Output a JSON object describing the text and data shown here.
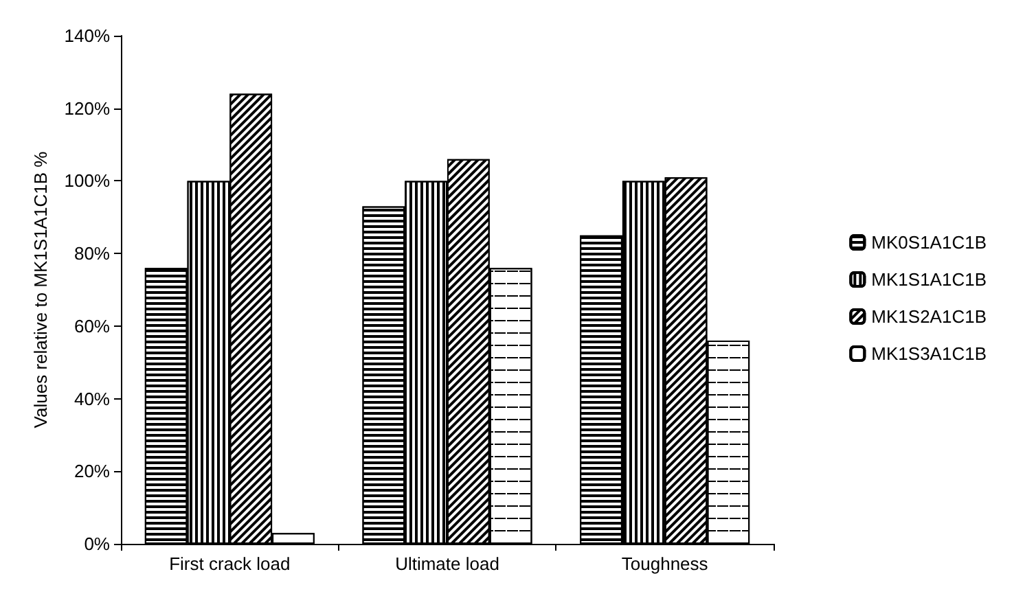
{
  "chart_data": {
    "type": "bar",
    "ylabel": "Values relative to MK1S1A1C1B %",
    "categories": [
      "First crack load",
      "Ultimate load",
      "Toughness"
    ],
    "series": [
      {
        "name": "MK0S1A1C1B",
        "color": "#000000",
        "values": [
          76,
          93,
          85
        ]
      },
      {
        "name": "MK1S1A1C1B",
        "color": "#000000",
        "values": [
          100,
          100,
          100
        ]
      },
      {
        "name": "MK1S2A1C1B",
        "color": "#000000",
        "values": [
          124,
          106,
          101
        ]
      },
      {
        "name": "MK1S3A1C1B",
        "color": "#000000",
        "values": [
          3,
          76,
          56
        ]
      }
    ],
    "ylim": [
      0,
      140
    ],
    "yticks": [
      {
        "value": 0,
        "label": "0%"
      },
      {
        "value": 20,
        "label": "20%"
      },
      {
        "value": 40,
        "label": "40%"
      },
      {
        "value": 60,
        "label": "60%"
      },
      {
        "value": 80,
        "label": "80%"
      },
      {
        "value": 100,
        "label": "100%"
      },
      {
        "value": 120,
        "label": "120%"
      },
      {
        "value": 140,
        "label": "140%"
      }
    ],
    "grid": false,
    "legend": "right"
  }
}
